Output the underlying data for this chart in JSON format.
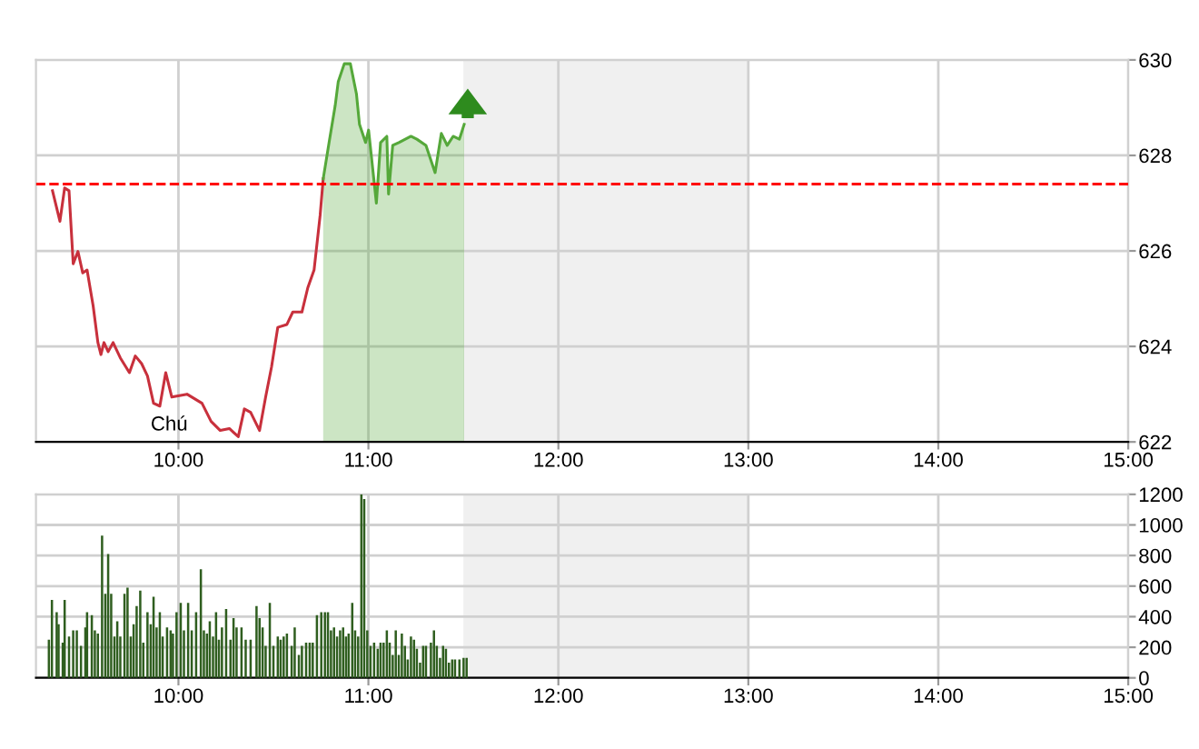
{
  "chart_data": [
    {
      "type": "area",
      "annotations": [
        "Chú"
      ],
      "grid": true,
      "xlim": [
        9.25,
        15
      ],
      "ylim": [
        622,
        630
      ],
      "xticks": [
        {
          "value": 10,
          "label": "10:00"
        },
        {
          "value": 11,
          "label": "11:00"
        },
        {
          "value": 12,
          "label": "12:00"
        },
        {
          "value": 13,
          "label": "13:00"
        },
        {
          "value": 14,
          "label": "14:00"
        },
        {
          "value": 15,
          "label": "15:00"
        }
      ],
      "yticks": [
        622,
        624,
        626,
        628,
        630
      ],
      "ref_lines": [
        {
          "axis": "y",
          "value": 627.4,
          "color": "#ff0000",
          "line_style": "dashed"
        }
      ],
      "bands": [
        {
          "axis": "x",
          "from": 11.5,
          "to": 13,
          "color": "#f0f0f0"
        }
      ],
      "series": [
        {
          "type": "line",
          "color": "#c8303c",
          "x": [
            9.337,
            9.376,
            9.401,
            9.424,
            9.446,
            9.471,
            9.496,
            9.519,
            9.551,
            9.576,
            9.592,
            9.608,
            9.63,
            9.656,
            9.694,
            9.742,
            9.773,
            9.806,
            9.837,
            9.869,
            9.902,
            9.933,
            9.965,
            10.045,
            10.124,
            10.172,
            10.22,
            10.268,
            10.315,
            10.347,
            10.38,
            10.427,
            10.459,
            10.49,
            10.523,
            10.571,
            10.602,
            10.65,
            10.681,
            10.714,
            10.746,
            10.762
          ],
          "values": [
            627.26,
            626.62,
            627.32,
            627.26,
            625.73,
            625.99,
            625.54,
            625.6,
            624.85,
            624.08,
            623.83,
            624.08,
            623.89,
            624.08,
            623.76,
            623.45,
            623.8,
            623.64,
            623.38,
            622.81,
            622.75,
            623.45,
            622.94,
            623.0,
            622.81,
            622.43,
            622.24,
            622.28,
            622.11,
            622.69,
            622.62,
            622.24,
            622.94,
            623.57,
            624.4,
            624.46,
            624.72,
            624.72,
            625.23,
            625.6,
            626.75,
            627.51
          ]
        },
        {
          "color": "#55a83a",
          "x": [
            10.762,
            10.793,
            10.825,
            10.841,
            10.873,
            10.905,
            10.937,
            10.953,
            10.985,
            11.001,
            11.042,
            11.064,
            11.097,
            11.106,
            11.128,
            11.16,
            11.224,
            11.255,
            11.303,
            11.351,
            11.384,
            11.415,
            11.446,
            11.479,
            11.504
          ],
          "values": [
            627.51,
            628.27,
            629.04,
            629.54,
            629.92,
            629.92,
            629.29,
            628.65,
            628.27,
            628.53,
            627.0,
            628.27,
            628.4,
            627.19,
            628.21,
            628.27,
            628.4,
            628.34,
            628.21,
            627.64,
            628.46,
            628.21,
            628.4,
            628.34,
            628.65
          ]
        }
      ]
    },
    {
      "type": "bar",
      "grid": true,
      "xlim": [
        9.25,
        15
      ],
      "ylim": [
        0,
        1200
      ],
      "color": "#2f5e1f",
      "xticks": [
        {
          "value": 10,
          "label": "10:00"
        },
        {
          "value": 11,
          "label": "11:00"
        },
        {
          "value": 12,
          "label": "12:00"
        },
        {
          "value": 13,
          "label": "13:00"
        },
        {
          "value": 14,
          "label": "14:00"
        },
        {
          "value": 15,
          "label": "15:00"
        }
      ],
      "yticks": [
        0,
        200,
        400,
        600,
        800,
        1000,
        1200
      ],
      "bands": [
        {
          "axis": "x",
          "from": 11.5,
          "to": 13,
          "color": "#f0f0f0"
        }
      ],
      "x": [
        9.318,
        9.334,
        9.359,
        9.369,
        9.391,
        9.401,
        9.424,
        9.446,
        9.465,
        9.487,
        9.51,
        9.519,
        9.544,
        9.56,
        9.576,
        9.598,
        9.615,
        9.63,
        9.646,
        9.663,
        9.678,
        9.694,
        9.716,
        9.732,
        9.749,
        9.764,
        9.78,
        9.799,
        9.815,
        9.837,
        9.854,
        9.869,
        9.885,
        9.902,
        9.917,
        9.94,
        9.959,
        9.971,
        9.99,
        10.012,
        10.029,
        10.051,
        10.07,
        10.093,
        10.118,
        10.134,
        10.15,
        10.165,
        10.182,
        10.198,
        10.213,
        10.229,
        10.251,
        10.274,
        10.29,
        10.306,
        10.332,
        10.354,
        10.38,
        10.411,
        10.427,
        10.443,
        10.459,
        10.481,
        10.5,
        10.523,
        10.538,
        10.554,
        10.571,
        10.596,
        10.612,
        10.634,
        10.65,
        10.672,
        10.691,
        10.707,
        10.729,
        10.752,
        10.771,
        10.787,
        10.803,
        10.819,
        10.835,
        10.851,
        10.867,
        10.882,
        10.896,
        10.915,
        10.93,
        10.946,
        10.963,
        10.978,
        10.994,
        11.011,
        11.03,
        11.049,
        11.064,
        11.08,
        11.097,
        11.112,
        11.128,
        11.144,
        11.16,
        11.176,
        11.192,
        11.207,
        11.224,
        11.24,
        11.255,
        11.272,
        11.288,
        11.303,
        11.329,
        11.345,
        11.36,
        11.377,
        11.393,
        11.408,
        11.424,
        11.441,
        11.456,
        11.479,
        11.501,
        11.517
      ],
      "values": [
        250,
        510,
        430,
        350,
        230,
        510,
        270,
        310,
        310,
        210,
        330,
        430,
        410,
        310,
        290,
        930,
        550,
        810,
        550,
        270,
        370,
        270,
        550,
        590,
        270,
        350,
        470,
        570,
        230,
        430,
        350,
        530,
        330,
        430,
        270,
        330,
        310,
        290,
        430,
        490,
        310,
        490,
        310,
        430,
        710,
        310,
        290,
        370,
        270,
        430,
        250,
        330,
        450,
        250,
        390,
        330,
        330,
        250,
        250,
        470,
        390,
        330,
        210,
        490,
        210,
        270,
        250,
        270,
        290,
        210,
        330,
        150,
        210,
        230,
        230,
        230,
        410,
        430,
        430,
        430,
        310,
        330,
        270,
        310,
        330,
        270,
        290,
        490,
        310,
        270,
        1200,
        1170,
        310,
        210,
        230,
        190,
        230,
        230,
        310,
        230,
        150,
        310,
        150,
        290,
        210,
        120,
        270,
        250,
        190,
        100,
        210,
        210,
        230,
        310,
        210,
        130,
        210,
        190,
        100,
        120,
        120,
        120,
        130,
        130
      ]
    }
  ]
}
